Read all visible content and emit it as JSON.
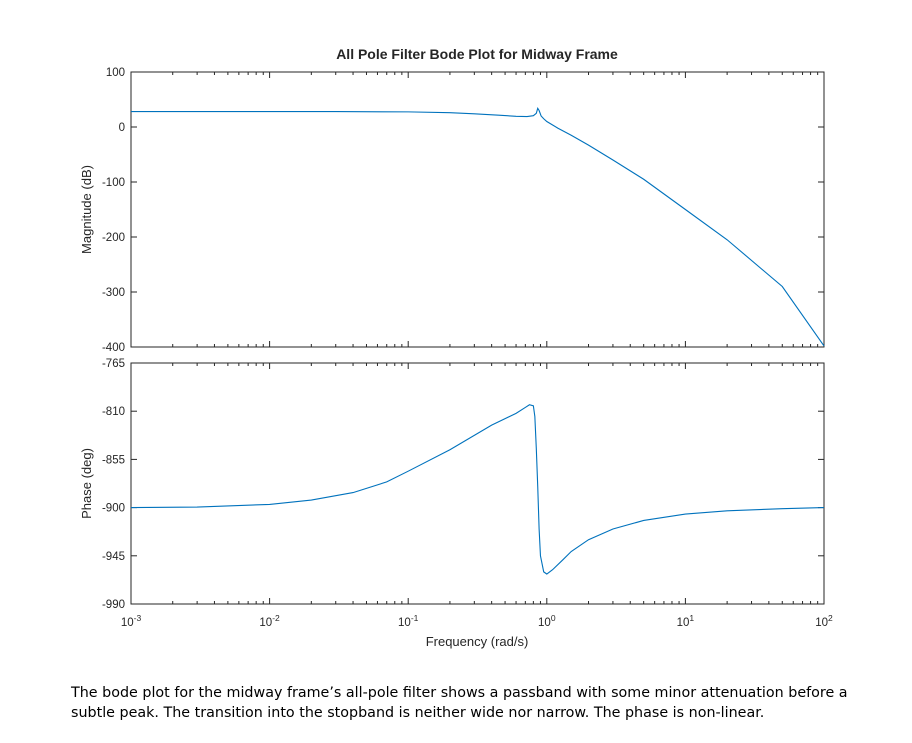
{
  "chart_data": {
    "type": "line",
    "title": "All Pole Filter Bode Plot for Midway Frame",
    "xlabel": "Frequency  (rad/s)",
    "x_scale": "log",
    "xlim": [
      0.001,
      100
    ],
    "x_ticks": [
      0.001,
      0.01,
      0.1,
      1,
      10,
      100
    ],
    "x_tick_labels": [
      {
        "base": "10",
        "exp": "-3"
      },
      {
        "base": "10",
        "exp": "-2"
      },
      {
        "base": "10",
        "exp": "-1"
      },
      {
        "base": "10",
        "exp": "0"
      },
      {
        "base": "10",
        "exp": "1"
      },
      {
        "base": "10",
        "exp": "2"
      }
    ],
    "grid": false,
    "line_color": "#0072BD",
    "axes_color": "#262626",
    "panels": [
      {
        "name": "magnitude",
        "ylabel": "Magnitude (dB)",
        "ylim": [
          -400,
          100
        ],
        "y_ticks": [
          100,
          0,
          -100,
          -200,
          -300,
          -400
        ],
        "y_tick_labels": [
          "100",
          "0",
          "-100",
          "-200",
          "-300",
          "-400"
        ],
        "series": [
          {
            "x": [
              0.001,
              0.003,
              0.01,
              0.03,
              0.1,
              0.2,
              0.3,
              0.45,
              0.6,
              0.72,
              0.8,
              0.84,
              0.86,
              0.88,
              0.91,
              0.95,
              1.0,
              1.2,
              1.5,
              2,
              3,
              5,
              10,
              20,
              50,
              100
            ],
            "y": [
              28,
              28,
              28,
              28,
              27.5,
              26,
              24,
              21.5,
              19.5,
              19,
              20.5,
              25,
              34,
              30,
              20,
              15,
              10,
              -2,
              -15,
              -33,
              -60,
              -95,
              -150,
              -205,
              -290,
              -398
            ]
          }
        ]
      },
      {
        "name": "phase",
        "ylabel": "Phase (deg)",
        "ylim": [
          -990,
          -765
        ],
        "y_ticks": [
          -765,
          -810,
          -855,
          -900,
          -945,
          -990
        ],
        "y_tick_labels": [
          "-765",
          "-810",
          "-855",
          "-900",
          "-945",
          "-990"
        ],
        "series": [
          {
            "x": [
              0.001,
              0.003,
              0.01,
              0.02,
              0.04,
              0.07,
              0.1,
              0.2,
              0.4,
              0.6,
              0.7,
              0.75,
              0.8,
              0.82,
              0.84,
              0.86,
              0.88,
              0.9,
              0.95,
              1.0,
              1.1,
              1.3,
              1.5,
              2,
              3,
              5,
              10,
              20,
              50,
              100
            ],
            "y": [
              -900,
              -899.5,
              -897,
              -893,
              -886,
              -876,
              -866,
              -846,
              -823,
              -812,
              -806.5,
              -804,
              -805,
              -815,
              -845,
              -880,
              -920,
              -945,
              -960,
              -962,
              -958,
              -949,
              -941,
              -930,
              -920,
              -912,
              -906,
              -903,
              -901,
              -900
            ]
          }
        ]
      }
    ]
  },
  "caption": "The bode plot for the midway frame’s all-pole filter shows a passband with some minor attenuation before a subtle peak. The transition into the stopband is neither wide nor narrow. The phase is non-linear."
}
